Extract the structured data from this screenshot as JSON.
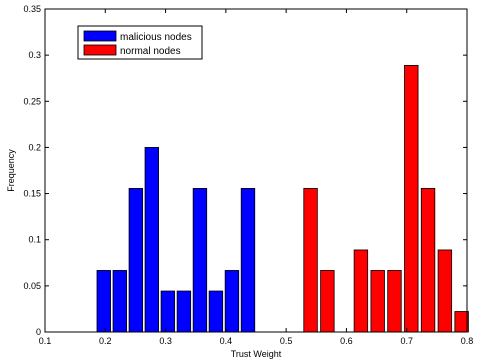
{
  "chart_data": {
    "type": "bar",
    "xlabel": "Trust Weight",
    "ylabel": "Frequency",
    "xlim": [
      0.1,
      0.8
    ],
    "ylim": [
      0,
      0.35
    ],
    "xticks": [
      "0.1",
      "0.2",
      "0.3",
      "0.4",
      "0.5",
      "0.6",
      "0.7",
      "0.8"
    ],
    "yticks": [
      "0",
      "0.05",
      "0.1",
      "0.15",
      "0.2",
      "0.25",
      "0.3",
      "0.35"
    ],
    "bar_width": 0.0225,
    "grid": false,
    "legend_position": "top-left",
    "series": [
      {
        "name": "malicious nodes",
        "color": "#0000ff",
        "x": [
          0.1975,
          0.2241,
          0.2507,
          0.2772,
          0.3038,
          0.3304,
          0.357,
          0.3835,
          0.4101,
          0.4367
        ],
        "values": [
          0.0667,
          0.0667,
          0.1556,
          0.2,
          0.0444,
          0.0444,
          0.1556,
          0.0444,
          0.0667,
          0.1556
        ]
      },
      {
        "name": "normal nodes",
        "color": "#ff0000",
        "x": [
          0.5405,
          0.5684,
          0.5962,
          0.624,
          0.6519,
          0.6797,
          0.7076,
          0.7354,
          0.7633,
          0.7911
        ],
        "values": [
          0.1556,
          0.0667,
          0.0,
          0.0889,
          0.0667,
          0.0667,
          0.2889,
          0.1556,
          0.0889,
          0.0222
        ]
      }
    ]
  }
}
